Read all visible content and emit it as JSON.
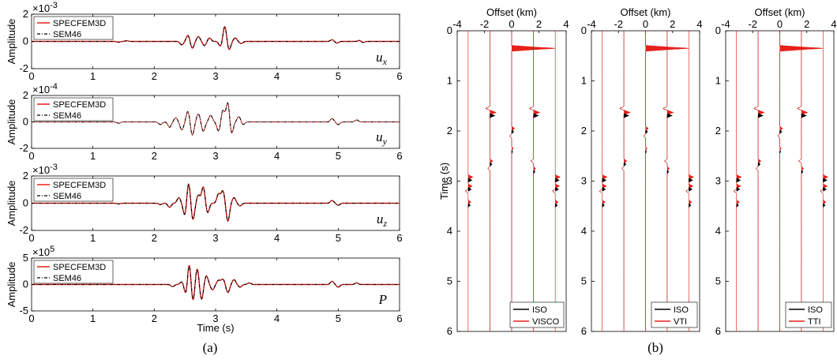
{
  "captions": {
    "a": "(a)",
    "b": "(b)"
  },
  "chart_data": [
    {
      "type": "line",
      "panel": "a",
      "xlabel": "Time (s)",
      "ylabel": "Amplitude",
      "xlim": [
        0,
        6
      ],
      "xticks": [
        "0",
        "1",
        "2",
        "3",
        "4",
        "5",
        "6"
      ],
      "legend": {
        "placement": "top-left",
        "entries": [
          "SPECFEM3D",
          "SEM46"
        ]
      },
      "series_style": {
        "SPECFEM3D": {
          "color": "#e8201a",
          "dash": "solid"
        },
        "SEM46": {
          "color": "#000000",
          "dash": "dashdot"
        }
      },
      "subplots": [
        {
          "component": "u",
          "subscript": "x",
          "multiplier": {
            "base": "×10",
            "exp": "-3"
          },
          "yticks": [
            "2",
            "0",
            "-2"
          ],
          "ylim": [
            -2,
            2
          ],
          "events": [
            {
              "t": 1.42,
              "a": -0.05
            },
            {
              "t": 1.55,
              "a": 0.05
            },
            {
              "t": 2.45,
              "a": -0.25
            },
            {
              "t": 2.55,
              "a": 0.45
            },
            {
              "t": 2.62,
              "a": -0.5
            },
            {
              "t": 2.72,
              "a": 0.35
            },
            {
              "t": 2.82,
              "a": -0.3
            },
            {
              "t": 2.9,
              "a": 0.25
            },
            {
              "t": 3.08,
              "a": -0.35
            },
            {
              "t": 3.15,
              "a": 1.1
            },
            {
              "t": 3.22,
              "a": -0.6
            },
            {
              "t": 3.32,
              "a": 0.25
            },
            {
              "t": 3.42,
              "a": -0.15
            },
            {
              "t": 4.9,
              "a": 0.12
            },
            {
              "t": 4.98,
              "a": -0.12
            },
            {
              "t": 5.35,
              "a": 0.08
            },
            {
              "t": 5.4,
              "a": -0.08
            }
          ]
        },
        {
          "component": "u",
          "subscript": "y",
          "multiplier": {
            "base": "×10",
            "exp": "-4"
          },
          "yticks": [
            "2",
            "0",
            "-2"
          ],
          "ylim": [
            -2,
            2
          ],
          "events": [
            {
              "t": 1.42,
              "a": -0.1
            },
            {
              "t": 2.1,
              "a": -0.2
            },
            {
              "t": 2.25,
              "a": -0.4
            },
            {
              "t": 2.35,
              "a": 0.3
            },
            {
              "t": 2.45,
              "a": -0.6
            },
            {
              "t": 2.55,
              "a": 0.8
            },
            {
              "t": 2.62,
              "a": -1.0
            },
            {
              "t": 2.72,
              "a": 0.6
            },
            {
              "t": 2.8,
              "a": -0.7
            },
            {
              "t": 2.92,
              "a": 0.5
            },
            {
              "t": 3.05,
              "a": -0.7
            },
            {
              "t": 3.12,
              "a": 0.9
            },
            {
              "t": 3.2,
              "a": 1.5
            },
            {
              "t": 3.26,
              "a": -0.9
            },
            {
              "t": 3.38,
              "a": 0.4
            },
            {
              "t": 3.45,
              "a": -0.2
            },
            {
              "t": 4.9,
              "a": 0.25
            },
            {
              "t": 5.0,
              "a": -0.2
            },
            {
              "t": 5.3,
              "a": 0.15
            }
          ]
        },
        {
          "component": "u",
          "subscript": "z",
          "multiplier": {
            "base": "×10",
            "exp": "-3"
          },
          "yticks": [
            "2",
            "0",
            "-2"
          ],
          "ylim": [
            -2,
            2
          ],
          "events": [
            {
              "t": 1.42,
              "a": -0.05
            },
            {
              "t": 2.1,
              "a": -0.1
            },
            {
              "t": 2.25,
              "a": -0.3
            },
            {
              "t": 2.4,
              "a": 0.4
            },
            {
              "t": 2.5,
              "a": -0.9
            },
            {
              "t": 2.56,
              "a": 1.5
            },
            {
              "t": 2.63,
              "a": -1.2
            },
            {
              "t": 2.72,
              "a": 0.6
            },
            {
              "t": 2.8,
              "a": 1.2
            },
            {
              "t": 2.87,
              "a": -0.7
            },
            {
              "t": 3.05,
              "a": 0.7
            },
            {
              "t": 3.12,
              "a": 0.9
            },
            {
              "t": 3.2,
              "a": -1.3
            },
            {
              "t": 3.3,
              "a": 0.4
            },
            {
              "t": 3.4,
              "a": -0.2
            },
            {
              "t": 4.9,
              "a": 0.2
            },
            {
              "t": 5.0,
              "a": -0.15
            }
          ]
        },
        {
          "component": "P",
          "subscript": "",
          "multiplier": {
            "base": "×10",
            "exp": "5"
          },
          "yticks": [
            "5",
            "0",
            "-5"
          ],
          "ylim": [
            -5,
            5
          ],
          "events": [
            {
              "t": 2.3,
              "a": -0.4
            },
            {
              "t": 2.45,
              "a": 0.5
            },
            {
              "t": 2.52,
              "a": -2.0
            },
            {
              "t": 2.57,
              "a": 4.2
            },
            {
              "t": 2.63,
              "a": -3.2
            },
            {
              "t": 2.7,
              "a": 3.0
            },
            {
              "t": 2.77,
              "a": -2.8
            },
            {
              "t": 2.85,
              "a": 1.6
            },
            {
              "t": 2.95,
              "a": -1.0
            },
            {
              "t": 3.05,
              "a": 0.8
            },
            {
              "t": 3.12,
              "a": 1.0
            },
            {
              "t": 3.2,
              "a": -1.5
            },
            {
              "t": 3.3,
              "a": 0.9
            },
            {
              "t": 3.4,
              "a": -0.5
            },
            {
              "t": 3.55,
              "a": 0.3
            },
            {
              "t": 4.9,
              "a": 0.6
            },
            {
              "t": 5.0,
              "a": -0.5
            },
            {
              "t": 5.3,
              "a": 0.3
            }
          ]
        }
      ]
    },
    {
      "type": "line",
      "panel": "b",
      "xlabel": "Offset (km)",
      "ylabel": "Time (s)",
      "xlim": [
        -4,
        4
      ],
      "ylim": [
        0,
        6
      ],
      "xticks": [
        "-4",
        "-2",
        "0",
        "2",
        "4"
      ],
      "yticks": [
        "0",
        "1",
        "2",
        "3",
        "4",
        "5",
        "6"
      ],
      "trace_offsets": [
        -3.2,
        -1.6,
        0,
        1.6,
        3.2
      ],
      "series_style": {
        "ISO": {
          "color": "#000000"
        },
        "variant": {
          "color": "#e8201a"
        }
      },
      "panels": [
        {
          "legend": [
            "ISO",
            "VISCO"
          ]
        },
        {
          "legend": [
            "ISO",
            "VTI"
          ]
        },
        {
          "legend": [
            "ISO",
            "TTI"
          ]
        }
      ],
      "direct_wave": {
        "offset": 0,
        "t": 0.35,
        "amplitude_km": 3.2
      },
      "arrivals": [
        {
          "offset": -1.6,
          "t": 1.63,
          "a": 0.45
        },
        {
          "offset": 1.6,
          "t": 1.63,
          "a": 0.45
        },
        {
          "offset": -1.6,
          "t": 1.55,
          "a": -0.3
        },
        {
          "offset": 1.6,
          "t": 1.55,
          "a": -0.3
        },
        {
          "offset": 0,
          "t": 1.95,
          "a": 0.2
        },
        {
          "offset": 0,
          "t": 2.1,
          "a": -0.15
        },
        {
          "offset": 0,
          "t": 2.35,
          "a": 0.1
        },
        {
          "offset": -1.6,
          "t": 2.6,
          "a": 0.2
        },
        {
          "offset": 1.6,
          "t": 2.6,
          "a": -0.2
        },
        {
          "offset": -1.6,
          "t": 2.75,
          "a": -0.15
        },
        {
          "offset": 1.6,
          "t": 2.75,
          "a": 0.15
        },
        {
          "offset": -3.2,
          "t": 2.92,
          "a": 0.35
        },
        {
          "offset": 3.2,
          "t": 2.92,
          "a": 0.35
        },
        {
          "offset": -3.2,
          "t": 3.1,
          "a": 0.3
        },
        {
          "offset": 3.2,
          "t": 3.1,
          "a": 0.3
        },
        {
          "offset": -3.2,
          "t": 3.2,
          "a": -0.2
        },
        {
          "offset": 3.2,
          "t": 3.2,
          "a": -0.2
        },
        {
          "offset": -3.2,
          "t": 3.42,
          "a": 0.2
        },
        {
          "offset": 3.2,
          "t": 3.42,
          "a": 0.2
        }
      ]
    }
  ]
}
